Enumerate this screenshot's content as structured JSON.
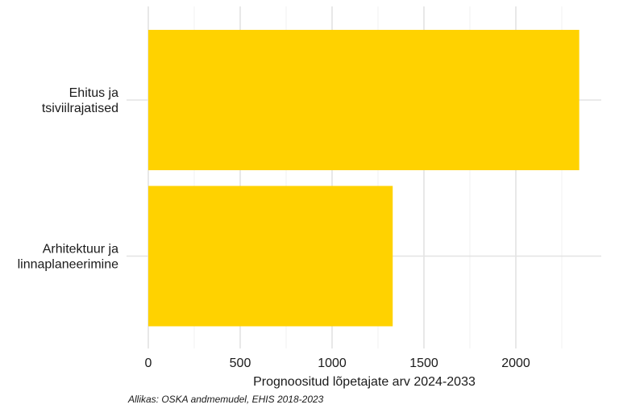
{
  "chart_data": {
    "type": "bar",
    "orientation": "horizontal",
    "categories": [
      [
        "Ehitus ja",
        "tsiviilrajatised"
      ],
      [
        "Arhitektuur ja",
        "linnaplaneerimine"
      ]
    ],
    "values": [
      2345,
      1330
    ],
    "xlabel": "Prognoositud lõpetajate arv 2024-2033",
    "ylabel": "",
    "xlim": [
      0,
      2450
    ],
    "xticks": [
      0,
      500,
      1000,
      1500,
      2000
    ],
    "grid": true,
    "bar_color": "#FFD200"
  },
  "caption": "Allikas: OSKA andmemudel, EHIS 2018-2023"
}
